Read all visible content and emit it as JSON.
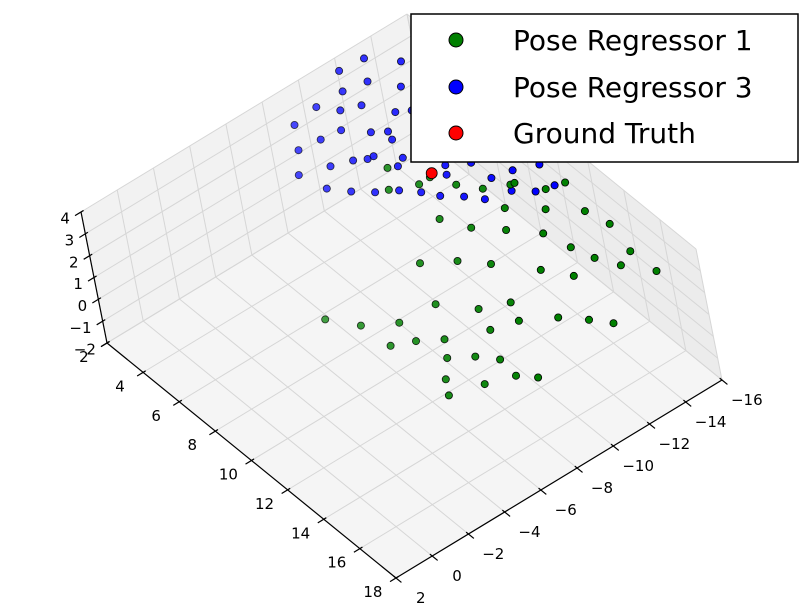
{
  "chart_data": {
    "type": "scatter",
    "projection": "3d",
    "grid": true,
    "legend_position": "top-right",
    "x_axis": {
      "ticks": [
        "2",
        "4",
        "6",
        "8",
        "10",
        "12",
        "14",
        "16",
        "18"
      ],
      "range": [
        2,
        18
      ]
    },
    "y_axis": {
      "ticks": [
        "2",
        "0",
        "−2",
        "−4",
        "−6",
        "−8",
        "−10",
        "−12",
        "−14",
        "−16"
      ],
      "range": [
        -16,
        2
      ]
    },
    "z_axis": {
      "ticks": [
        "−2",
        "−1",
        "0",
        "1",
        "2",
        "3",
        "4"
      ],
      "range": [
        -2,
        4
      ]
    },
    "series": [
      {
        "name": "Pose Regressor 1",
        "color": "#008000",
        "points": [
          [
            10.1,
            -7.2,
            -1.1
          ],
          [
            10.8,
            -8.1,
            -1.0
          ],
          [
            11.4,
            -7.6,
            -1.2
          ],
          [
            12.2,
            -8.4,
            -1.0
          ],
          [
            13.0,
            -9.0,
            -0.9
          ],
          [
            12.1,
            -6.8,
            -1.3
          ],
          [
            13.4,
            -7.7,
            -1.1
          ],
          [
            14.1,
            -8.8,
            -0.8
          ],
          [
            12.9,
            -6.2,
            -1.2
          ],
          [
            14.6,
            -9.5,
            -0.9
          ],
          [
            9.6,
            -8.9,
            -0.6
          ],
          [
            10.9,
            -10.0,
            -0.5
          ],
          [
            11.8,
            -9.7,
            -0.7
          ],
          [
            8.7,
            -7.6,
            -1.4
          ],
          [
            9.3,
            -6.5,
            -1.5
          ],
          [
            7.2,
            -5.1,
            -1.0
          ],
          [
            8.0,
            -6.2,
            -1.3
          ],
          [
            11.5,
            -11.2,
            -0.4
          ],
          [
            12.6,
            -10.6,
            -0.2
          ],
          [
            13.5,
            -11.9,
            -0.1
          ],
          [
            14.7,
            -12.5,
            0.3
          ],
          [
            15.6,
            -13.0,
            0.5
          ],
          [
            13.2,
            -13.3,
            0.9
          ],
          [
            11.9,
            -12.7,
            0.6
          ],
          [
            10.3,
            -11.5,
            0.4
          ],
          [
            9.2,
            -10.7,
            0.2
          ],
          [
            8.3,
            -9.5,
            0.1
          ],
          [
            10.0,
            -12.8,
            1.1
          ],
          [
            11.2,
            -13.7,
            1.3
          ],
          [
            12.3,
            -14.1,
            1.2
          ],
          [
            10.6,
            -14.5,
            1.6
          ],
          [
            9.4,
            -13.4,
            1.4
          ],
          [
            8.8,
            -12.0,
            0.8
          ],
          [
            7.9,
            -11.2,
            1.0
          ],
          [
            12.8,
            -14.8,
            0.7
          ],
          [
            13.9,
            -15.2,
            0.9
          ],
          [
            11.7,
            -15.6,
            1.7
          ],
          [
            10.2,
            -15.0,
            2.0
          ],
          [
            9.0,
            -14.2,
            1.8
          ],
          [
            12.5,
            -16.1,
            1.4
          ],
          [
            6.8,
            -9.8,
            2.3
          ],
          [
            7.4,
            -10.9,
            2.4
          ],
          [
            8.1,
            -12.2,
            2.2
          ],
          [
            6.2,
            -10.4,
            2.6
          ],
          [
            9.7,
            -13.9,
            2.5
          ],
          [
            10.5,
            -15.8,
            2.1
          ],
          [
            13.1,
            -16.4,
            0.4
          ],
          [
            14.3,
            -16.6,
            0.2
          ],
          [
            8.6,
            -13.1,
            1.9
          ],
          [
            7.0,
            -11.8,
            2.0
          ]
        ]
      },
      {
        "name": "Pose Regressor 3",
        "color": "#0000ff",
        "points": [
          [
            4.6,
            -8.8,
            2.4
          ],
          [
            5.1,
            -9.6,
            2.6
          ],
          [
            5.7,
            -10.2,
            2.9
          ],
          [
            4.9,
            -10.9,
            3.1
          ],
          [
            5.4,
            -11.5,
            2.8
          ],
          [
            6.1,
            -11.0,
            2.3
          ],
          [
            6.5,
            -12.1,
            2.6
          ],
          [
            5.9,
            -12.8,
            3.0
          ],
          [
            6.8,
            -13.1,
            2.4
          ],
          [
            7.2,
            -12.5,
            1.9
          ],
          [
            7.5,
            -13.6,
            2.1
          ],
          [
            6.9,
            -14.2,
            2.7
          ],
          [
            4.3,
            -9.9,
            3.3
          ],
          [
            3.9,
            -9.1,
            3.0
          ],
          [
            4.1,
            -11.3,
            3.6
          ],
          [
            3.7,
            -10.5,
            3.5
          ],
          [
            5.2,
            -12.9,
            3.3
          ],
          [
            5.8,
            -13.8,
            3.4
          ],
          [
            6.3,
            -14.6,
            3.1
          ],
          [
            7.7,
            -14.9,
            2.2
          ],
          [
            8.1,
            -14.0,
            1.6
          ],
          [
            8.4,
            -14.9,
            1.7
          ],
          [
            7.9,
            -15.6,
            2.3
          ],
          [
            7.1,
            -15.3,
            2.9
          ],
          [
            6.6,
            -15.9,
            3.4
          ],
          [
            5.6,
            -15.1,
            3.7
          ],
          [
            4.8,
            -14.3,
            3.8
          ],
          [
            4.4,
            -13.2,
            3.7
          ],
          [
            3.6,
            -12.2,
            3.9
          ],
          [
            3.3,
            -11.1,
            3.8
          ],
          [
            3.1,
            -9.8,
            3.6
          ],
          [
            2.9,
            -8.7,
            3.2
          ],
          [
            3.5,
            -8.2,
            2.7
          ],
          [
            4.0,
            -7.6,
            2.2
          ],
          [
            5.0,
            -8.1,
            2.0
          ],
          [
            5.5,
            -8.9,
            1.8
          ],
          [
            6.0,
            -9.7,
            1.7
          ],
          [
            6.4,
            -10.6,
            1.6
          ],
          [
            6.9,
            -11.3,
            1.5
          ],
          [
            7.3,
            -11.9,
            1.3
          ],
          [
            7.8,
            -12.7,
            1.2
          ],
          [
            8.2,
            -13.4,
            1.0
          ],
          [
            8.6,
            -14.5,
            1.1
          ],
          [
            9.1,
            -15.3,
            1.0
          ],
          [
            9.5,
            -16.0,
            1.2
          ],
          [
            8.9,
            -15.9,
            1.8
          ],
          [
            4.5,
            -12.6,
            2.9
          ],
          [
            5.3,
            -14.0,
            2.6
          ],
          [
            6.2,
            -13.4,
            2.0
          ],
          [
            4.7,
            -11.9,
            2.5
          ],
          [
            5.0,
            -10.4,
            2.2
          ],
          [
            5.6,
            -11.7,
            2.0
          ],
          [
            6.7,
            -12.9,
            1.8
          ],
          [
            3.8,
            -13.9,
            4.1
          ],
          [
            4.2,
            -15.0,
            4.2
          ],
          [
            5.4,
            -16.3,
            4.0
          ],
          [
            3.0,
            -12.7,
            4.3
          ],
          [
            2.8,
            -11.5,
            4.2
          ],
          [
            7.4,
            -16.4,
            2.6
          ],
          [
            6.1,
            -16.5,
            3.6
          ]
        ]
      },
      {
        "name": "Ground Truth",
        "color": "#ff0000",
        "points": [
          [
            6.5,
            -12.3,
            1.6
          ]
        ]
      }
    ]
  }
}
